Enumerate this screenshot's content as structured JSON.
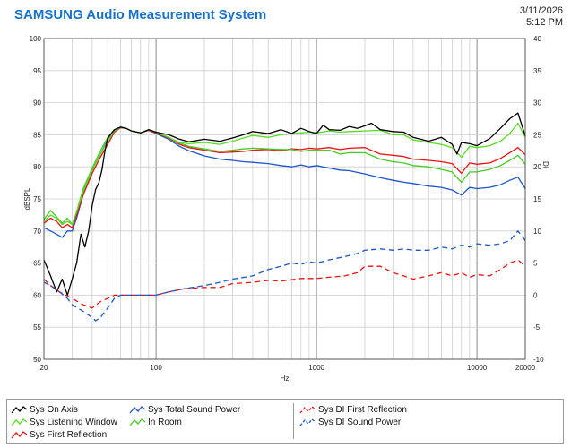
{
  "header": {
    "title": "SAMSUNG Audio Measurement System",
    "date": "3/11/2026",
    "time": "5:12 PM"
  },
  "colors": {
    "on_axis": "#000000",
    "listening_window": "#55dd22",
    "first_reflection": "#ee1111",
    "sound_power": "#1b55c8",
    "in_room": "#44cc22",
    "di_first_reflection": "#ee1111",
    "di_sound_power": "#1b55c8",
    "title": "#1b72c9"
  },
  "chart_data": {
    "type": "line",
    "x_scale": "log",
    "xlabel": "Hz",
    "ylabel": "dBSPL",
    "y2label": "DI",
    "xlim": [
      20,
      20000
    ],
    "ylim": [
      50,
      100
    ],
    "y2lim": [
      -10,
      40
    ],
    "grid": true,
    "legend_position": "bottom",
    "x_ticks": [
      "20",
      "100",
      "1000",
      "10000",
      "20000"
    ],
    "y_ticks": [
      "50",
      "55",
      "60",
      "65",
      "70",
      "75",
      "80",
      "85",
      "90",
      "95",
      "100"
    ],
    "y2_ticks": [
      "-10",
      "-5",
      "0",
      "5",
      "10",
      "15",
      "20",
      "25",
      "30",
      "35",
      "40"
    ],
    "series": [
      {
        "name": "Sys On Axis",
        "axis": "left",
        "style": "solid",
        "color_key": "on_axis",
        "x": [
          20,
          22,
          24,
          26,
          28,
          30,
          32,
          34,
          36,
          38,
          40,
          42,
          44,
          46,
          48,
          50,
          55,
          60,
          65,
          70,
          80,
          90,
          100,
          120,
          140,
          160,
          200,
          250,
          300,
          350,
          400,
          500,
          600,
          700,
          800,
          900,
          1000,
          1100,
          1200,
          1400,
          1600,
          1800,
          2000,
          2200,
          2500,
          3000,
          3500,
          4000,
          5000,
          6000,
          7000,
          7500,
          8000,
          9000,
          10000,
          12000,
          14000,
          16000,
          18000,
          20000
        ],
        "y": [
          65.5,
          63.0,
          60.5,
          62.5,
          60.0,
          62.5,
          65.0,
          69.5,
          67.5,
          70.0,
          74.0,
          76.5,
          77.5,
          79.5,
          82.5,
          84.5,
          85.8,
          86.2,
          86.0,
          85.6,
          85.3,
          85.8,
          85.4,
          85.0,
          84.3,
          83.9,
          84.3,
          84.0,
          84.5,
          85.0,
          85.5,
          85.2,
          85.8,
          85.2,
          86.0,
          85.5,
          85.2,
          86.5,
          85.8,
          85.7,
          86.3,
          86.0,
          86.4,
          86.8,
          85.8,
          85.5,
          85.4,
          84.6,
          84.0,
          84.6,
          83.5,
          82.0,
          83.8,
          83.6,
          83.3,
          84.4,
          86.0,
          87.5,
          88.4,
          84.8
        ]
      },
      {
        "name": "Sys Listening Window",
        "axis": "left",
        "style": "solid",
        "color_key": "listening_window",
        "x": [
          20,
          22,
          24,
          26,
          28,
          30,
          32,
          35,
          40,
          45,
          50,
          55,
          60,
          65,
          70,
          80,
          90,
          100,
          120,
          140,
          160,
          200,
          250,
          300,
          350,
          400,
          500,
          600,
          700,
          800,
          900,
          1000,
          1200,
          1400,
          1600,
          2000,
          2500,
          3000,
          3500,
          4000,
          5000,
          6000,
          7000,
          8000,
          9000,
          10000,
          12000,
          14000,
          16000,
          18000,
          20000
        ],
        "y": [
          71.5,
          72.5,
          72.0,
          71.0,
          71.5,
          71.0,
          73.0,
          76.0,
          79.5,
          82.0,
          84.0,
          85.6,
          86.2,
          86.0,
          85.6,
          85.3,
          85.8,
          85.4,
          84.6,
          83.8,
          83.6,
          83.8,
          83.5,
          84.0,
          84.5,
          84.9,
          84.6,
          85.0,
          85.2,
          85.3,
          85.4,
          85.3,
          85.6,
          85.4,
          85.5,
          85.6,
          85.7,
          85.0,
          85.0,
          84.2,
          83.8,
          83.5,
          83.0,
          81.5,
          83.2,
          83.0,
          83.3,
          84.0,
          85.2,
          86.8,
          84.6
        ]
      },
      {
        "name": "Sys First Reflection",
        "axis": "left",
        "style": "solid",
        "color_key": "first_reflection",
        "x": [
          20,
          22,
          24,
          26,
          28,
          30,
          32,
          35,
          40,
          45,
          50,
          55,
          60,
          65,
          70,
          80,
          90,
          100,
          120,
          140,
          160,
          200,
          250,
          300,
          350,
          400,
          500,
          600,
          700,
          800,
          900,
          1000,
          1200,
          1400,
          1600,
          2000,
          2500,
          3000,
          3500,
          4000,
          5000,
          6000,
          7000,
          8000,
          9000,
          10000,
          12000,
          14000,
          16000,
          18000,
          20000
        ],
        "y": [
          71.2,
          72.0,
          71.5,
          70.5,
          71.0,
          70.5,
          72.5,
          75.5,
          79.0,
          81.5,
          83.5,
          85.4,
          86.1,
          86.0,
          85.6,
          85.3,
          85.7,
          85.3,
          84.5,
          83.5,
          83.0,
          82.6,
          82.2,
          82.3,
          82.4,
          82.6,
          82.7,
          82.5,
          82.8,
          82.7,
          82.9,
          82.8,
          83.0,
          82.7,
          82.9,
          83.0,
          82.0,
          81.8,
          81.6,
          81.2,
          81.0,
          80.8,
          80.5,
          79.0,
          80.6,
          80.4,
          80.6,
          81.3,
          82.2,
          83.0,
          81.9
        ]
      },
      {
        "name": "Sys Total Sound Power",
        "axis": "left",
        "style": "solid",
        "color_key": "sound_power",
        "x": [
          20,
          22,
          24,
          26,
          28,
          30,
          32,
          35,
          40,
          45,
          50,
          55,
          60,
          65,
          70,
          80,
          90,
          100,
          120,
          140,
          160,
          200,
          250,
          300,
          350,
          400,
          500,
          600,
          700,
          800,
          900,
          1000,
          1200,
          1400,
          1600,
          2000,
          2500,
          3000,
          3500,
          4000,
          5000,
          6000,
          7000,
          8000,
          9000,
          10000,
          12000,
          14000,
          16000,
          18000,
          20000
        ],
        "y": [
          70.5,
          70.0,
          69.5,
          69.0,
          70.0,
          70.0,
          72.0,
          75.5,
          79.5,
          82.0,
          84.2,
          85.5,
          86.1,
          86.0,
          85.6,
          85.3,
          85.7,
          85.2,
          84.3,
          83.2,
          82.5,
          81.7,
          81.2,
          81.0,
          80.8,
          80.7,
          80.5,
          80.2,
          80.0,
          80.3,
          80.0,
          80.2,
          79.8,
          79.5,
          79.4,
          78.9,
          78.3,
          77.9,
          77.6,
          77.4,
          77.0,
          76.8,
          76.4,
          75.6,
          76.8,
          76.6,
          76.8,
          77.2,
          77.9,
          78.4,
          76.6
        ]
      },
      {
        "name": "In Room",
        "axis": "left",
        "style": "solid",
        "color_key": "in_room",
        "x": [
          20,
          22,
          24,
          26,
          28,
          30,
          32,
          35,
          40,
          45,
          50,
          55,
          60,
          65,
          70,
          80,
          90,
          100,
          120,
          140,
          160,
          200,
          250,
          300,
          350,
          400,
          500,
          600,
          700,
          800,
          900,
          1000,
          1200,
          1400,
          1600,
          2000,
          2500,
          3000,
          3500,
          4000,
          5000,
          6000,
          7000,
          8000,
          9000,
          10000,
          12000,
          14000,
          16000,
          18000,
          20000
        ],
        "y": [
          71.8,
          73.2,
          72.2,
          71.2,
          72.0,
          71.0,
          73.0,
          76.5,
          79.8,
          82.5,
          84.6,
          85.8,
          86.2,
          86.0,
          85.6,
          85.3,
          85.8,
          85.4,
          84.6,
          83.7,
          83.2,
          82.8,
          82.4,
          82.6,
          82.8,
          82.9,
          82.8,
          82.7,
          82.7,
          82.4,
          82.6,
          82.6,
          82.6,
          82.0,
          82.2,
          82.2,
          81.2,
          80.8,
          80.6,
          80.2,
          80.0,
          79.6,
          79.2,
          77.6,
          79.2,
          79.2,
          79.6,
          80.2,
          81.0,
          81.8,
          80.4
        ]
      },
      {
        "name": "Sys DI First Reflection",
        "axis": "right",
        "style": "dashed",
        "color_key": "di_first_reflection",
        "x": [
          20,
          22,
          25,
          30,
          35,
          40,
          45,
          50,
          55,
          60,
          70,
          80,
          100,
          120,
          150,
          200,
          250,
          300,
          400,
          500,
          600,
          700,
          800,
          900,
          1000,
          1200,
          1500,
          1800,
          2000,
          2500,
          3000,
          3500,
          4000,
          5000,
          6000,
          7000,
          8000,
          9000,
          10000,
          12000,
          14000,
          16000,
          18000,
          20000
        ],
        "y": [
          2.5,
          1.5,
          0.5,
          -0.5,
          -1.5,
          -2.0,
          -1.0,
          -0.5,
          0.0,
          0.0,
          0.0,
          0.0,
          0.0,
          0.5,
          1.0,
          1.2,
          1.2,
          1.8,
          2.0,
          2.3,
          2.2,
          2.4,
          2.6,
          2.6,
          2.6,
          2.8,
          3.0,
          3.5,
          4.5,
          4.5,
          3.5,
          3.0,
          2.5,
          3.0,
          3.5,
          3.0,
          3.5,
          2.8,
          3.2,
          3.0,
          4.0,
          5.0,
          5.5,
          4.5
        ]
      },
      {
        "name": "Sys DI Sound Power",
        "axis": "right",
        "style": "dashed",
        "color_key": "di_sound_power",
        "x": [
          20,
          22,
          25,
          28,
          30,
          35,
          40,
          42,
          45,
          50,
          55,
          60,
          70,
          80,
          100,
          120,
          150,
          200,
          250,
          300,
          400,
          500,
          600,
          700,
          800,
          900,
          1000,
          1200,
          1500,
          1800,
          2000,
          2500,
          3000,
          3500,
          4000,
          5000,
          6000,
          7000,
          8000,
          9000,
          10000,
          12000,
          14000,
          16000,
          18000,
          20000
        ],
        "y": [
          2.0,
          1.5,
          0.5,
          -0.5,
          -1.5,
          -2.5,
          -3.5,
          -4.0,
          -3.5,
          -2.0,
          -0.5,
          0.0,
          0.0,
          0.0,
          0.0,
          0.5,
          1.0,
          1.5,
          2.0,
          2.5,
          3.0,
          4.0,
          4.5,
          5.0,
          4.8,
          5.2,
          5.0,
          5.5,
          6.0,
          6.5,
          7.0,
          7.2,
          7.0,
          7.2,
          7.0,
          7.0,
          7.5,
          7.2,
          7.8,
          7.5,
          8.0,
          7.8,
          8.0,
          8.5,
          10.0,
          8.5
        ]
      }
    ]
  },
  "legend": {
    "items": [
      {
        "label": "Sys On Axis",
        "color_key": "on_axis",
        "style": "solid"
      },
      {
        "label": "Sys Listening Window",
        "color_key": "listening_window",
        "style": "solid"
      },
      {
        "label": "Sys First Reflection",
        "color_key": "first_reflection",
        "style": "solid"
      },
      {
        "label": "Sys Total Sound Power",
        "color_key": "sound_power",
        "style": "solid"
      },
      {
        "label": "In Room",
        "color_key": "in_room",
        "style": "solid"
      },
      {
        "label": "Sys DI First Reflection",
        "color_key": "di_first_reflection",
        "style": "dashed"
      },
      {
        "label": "Sys DI Sound Power",
        "color_key": "di_sound_power",
        "style": "dashed"
      }
    ]
  }
}
